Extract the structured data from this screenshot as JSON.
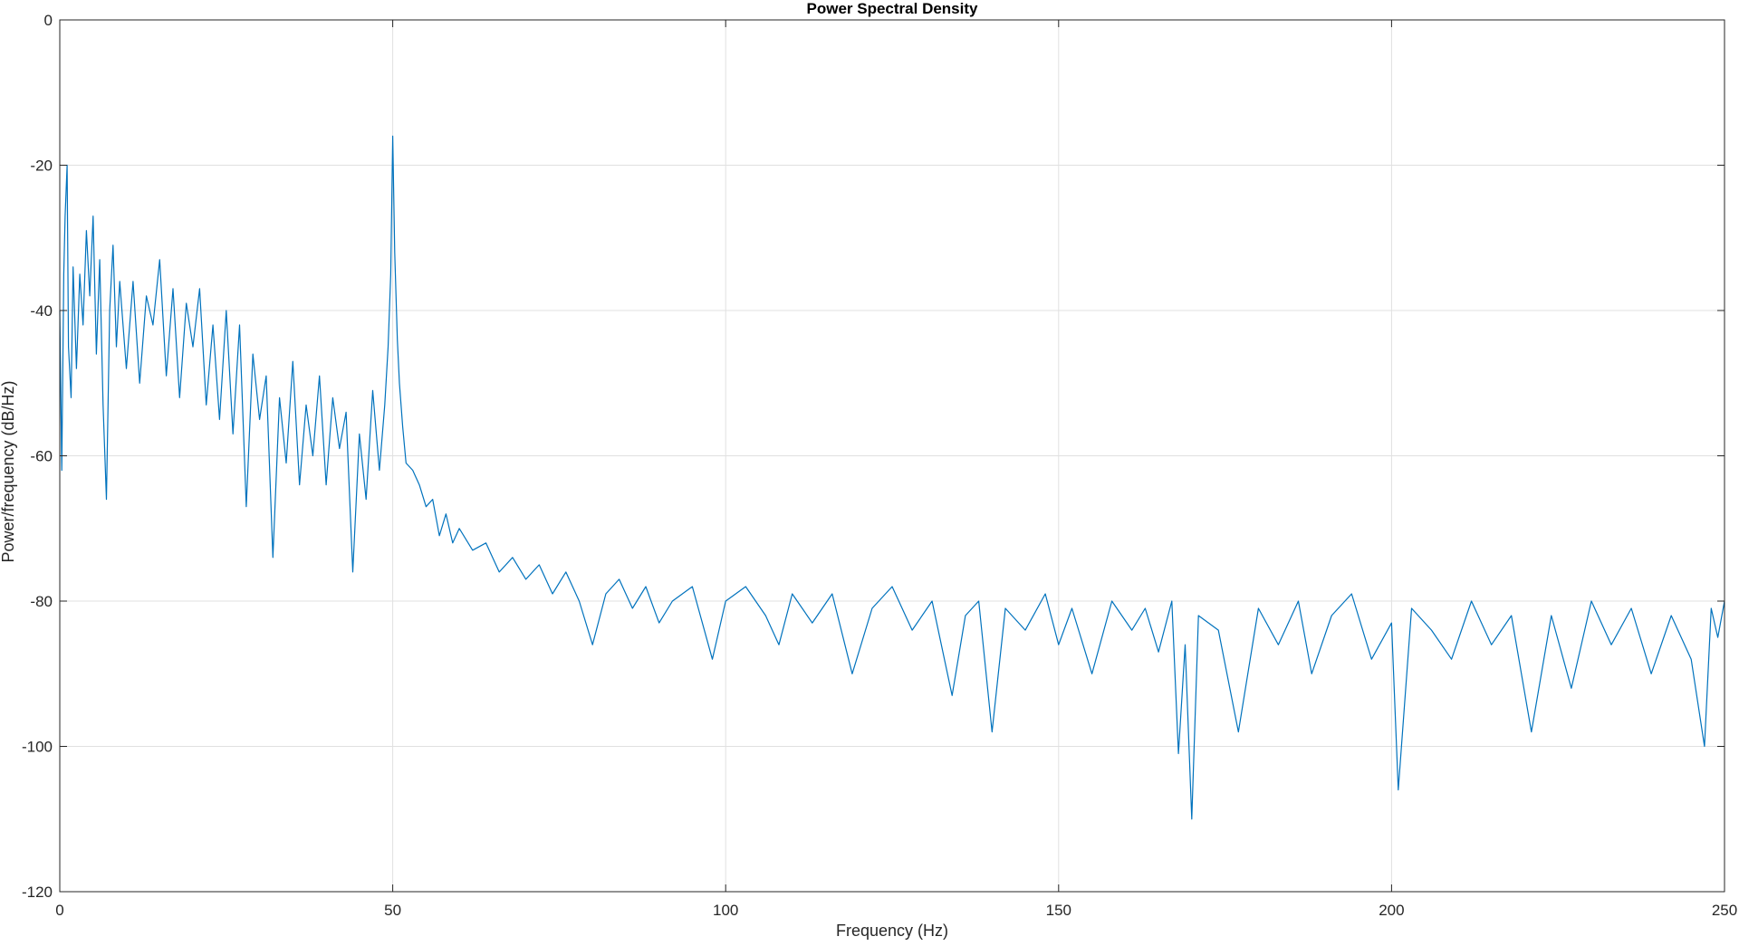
{
  "chart_data": {
    "type": "line",
    "title": "Power Spectral Density",
    "xlabel": "Frequency (Hz)",
    "ylabel": "Power/frequency (dB/Hz)",
    "xlim": [
      0,
      250
    ],
    "ylim": [
      -120,
      0
    ],
    "xticks": [
      0,
      50,
      100,
      150,
      200,
      250
    ],
    "yticks": [
      0,
      -20,
      -40,
      -60,
      -80,
      -100,
      -120
    ],
    "grid": true,
    "line_color": "#0072BD",
    "series": [
      {
        "points": [
          [
            0,
            -40
          ],
          [
            0.3,
            -62
          ],
          [
            0.6,
            -35
          ],
          [
            0.8,
            -27
          ],
          [
            1.1,
            -20
          ],
          [
            1.3,
            -45
          ],
          [
            1.7,
            -52
          ],
          [
            2.0,
            -34
          ],
          [
            2.5,
            -48
          ],
          [
            3.0,
            -35
          ],
          [
            3.5,
            -42
          ],
          [
            4.0,
            -29
          ],
          [
            4.5,
            -38
          ],
          [
            5.0,
            -27
          ],
          [
            5.5,
            -46
          ],
          [
            6.0,
            -33
          ],
          [
            6.5,
            -53
          ],
          [
            7.0,
            -66
          ],
          [
            7.5,
            -40
          ],
          [
            8.0,
            -31
          ],
          [
            8.5,
            -45
          ],
          [
            9.0,
            -36
          ],
          [
            10,
            -48
          ],
          [
            11,
            -36
          ],
          [
            12,
            -50
          ],
          [
            13,
            -38
          ],
          [
            14,
            -42
          ],
          [
            15,
            -33
          ],
          [
            16,
            -49
          ],
          [
            17,
            -37
          ],
          [
            18,
            -52
          ],
          [
            19,
            -39
          ],
          [
            20,
            -45
          ],
          [
            21,
            -37
          ],
          [
            22,
            -53
          ],
          [
            23,
            -42
          ],
          [
            24,
            -55
          ],
          [
            25,
            -40
          ],
          [
            26,
            -57
          ],
          [
            27,
            -42
          ],
          [
            28,
            -67
          ],
          [
            29,
            -46
          ],
          [
            30,
            -55
          ],
          [
            31,
            -49
          ],
          [
            32,
            -74
          ],
          [
            33,
            -52
          ],
          [
            34,
            -61
          ],
          [
            35,
            -47
          ],
          [
            36,
            -64
          ],
          [
            37,
            -53
          ],
          [
            38,
            -60
          ],
          [
            39,
            -49
          ],
          [
            40,
            -64
          ],
          [
            41,
            -52
          ],
          [
            42,
            -59
          ],
          [
            43,
            -54
          ],
          [
            44,
            -76
          ],
          [
            45,
            -57
          ],
          [
            46,
            -66
          ],
          [
            47,
            -51
          ],
          [
            48,
            -62
          ],
          [
            48.8,
            -53
          ],
          [
            49.3,
            -45
          ],
          [
            49.7,
            -35
          ],
          [
            50.0,
            -16
          ],
          [
            50.3,
            -32
          ],
          [
            50.7,
            -44
          ],
          [
            51.0,
            -50
          ],
          [
            51.5,
            -56
          ],
          [
            52.0,
            -61
          ],
          [
            53,
            -62
          ],
          [
            54,
            -64
          ],
          [
            55,
            -67
          ],
          [
            56,
            -66
          ],
          [
            57,
            -71
          ],
          [
            58,
            -68
          ],
          [
            59,
            -72
          ],
          [
            60,
            -70
          ],
          [
            62,
            -73
          ],
          [
            64,
            -72
          ],
          [
            66,
            -76
          ],
          [
            68,
            -74
          ],
          [
            70,
            -77
          ],
          [
            72,
            -75
          ],
          [
            74,
            -79
          ],
          [
            76,
            -76
          ],
          [
            78,
            -80
          ],
          [
            80,
            -86
          ],
          [
            82,
            -79
          ],
          [
            84,
            -77
          ],
          [
            86,
            -81
          ],
          [
            88,
            -78
          ],
          [
            90,
            -83
          ],
          [
            92,
            -80
          ],
          [
            95,
            -78
          ],
          [
            98,
            -88
          ],
          [
            100,
            -80
          ],
          [
            103,
            -78
          ],
          [
            106,
            -82
          ],
          [
            108,
            -86
          ],
          [
            110,
            -79
          ],
          [
            113,
            -83
          ],
          [
            116,
            -79
          ],
          [
            119,
            -90
          ],
          [
            122,
            -81
          ],
          [
            125,
            -78
          ],
          [
            128,
            -84
          ],
          [
            131,
            -80
          ],
          [
            134,
            -93
          ],
          [
            136,
            -82
          ],
          [
            138,
            -80
          ],
          [
            140,
            -98
          ],
          [
            142,
            -81
          ],
          [
            145,
            -84
          ],
          [
            148,
            -79
          ],
          [
            150,
            -86
          ],
          [
            152,
            -81
          ],
          [
            155,
            -90
          ],
          [
            158,
            -80
          ],
          [
            161,
            -84
          ],
          [
            163,
            -81
          ],
          [
            165,
            -87
          ],
          [
            167,
            -80
          ],
          [
            168,
            -101
          ],
          [
            169,
            -86
          ],
          [
            170,
            -110
          ],
          [
            171,
            -82
          ],
          [
            174,
            -84
          ],
          [
            177,
            -98
          ],
          [
            180,
            -81
          ],
          [
            183,
            -86
          ],
          [
            186,
            -80
          ],
          [
            188,
            -90
          ],
          [
            191,
            -82
          ],
          [
            194,
            -79
          ],
          [
            197,
            -88
          ],
          [
            200,
            -83
          ],
          [
            201,
            -106
          ],
          [
            203,
            -81
          ],
          [
            206,
            -84
          ],
          [
            209,
            -88
          ],
          [
            212,
            -80
          ],
          [
            215,
            -86
          ],
          [
            218,
            -82
          ],
          [
            221,
            -98
          ],
          [
            224,
            -82
          ],
          [
            227,
            -92
          ],
          [
            230,
            -80
          ],
          [
            233,
            -86
          ],
          [
            236,
            -81
          ],
          [
            239,
            -90
          ],
          [
            242,
            -82
          ],
          [
            245,
            -88
          ],
          [
            247,
            -100
          ],
          [
            248,
            -81
          ],
          [
            249,
            -85
          ],
          [
            250,
            -80
          ]
        ]
      }
    ]
  }
}
